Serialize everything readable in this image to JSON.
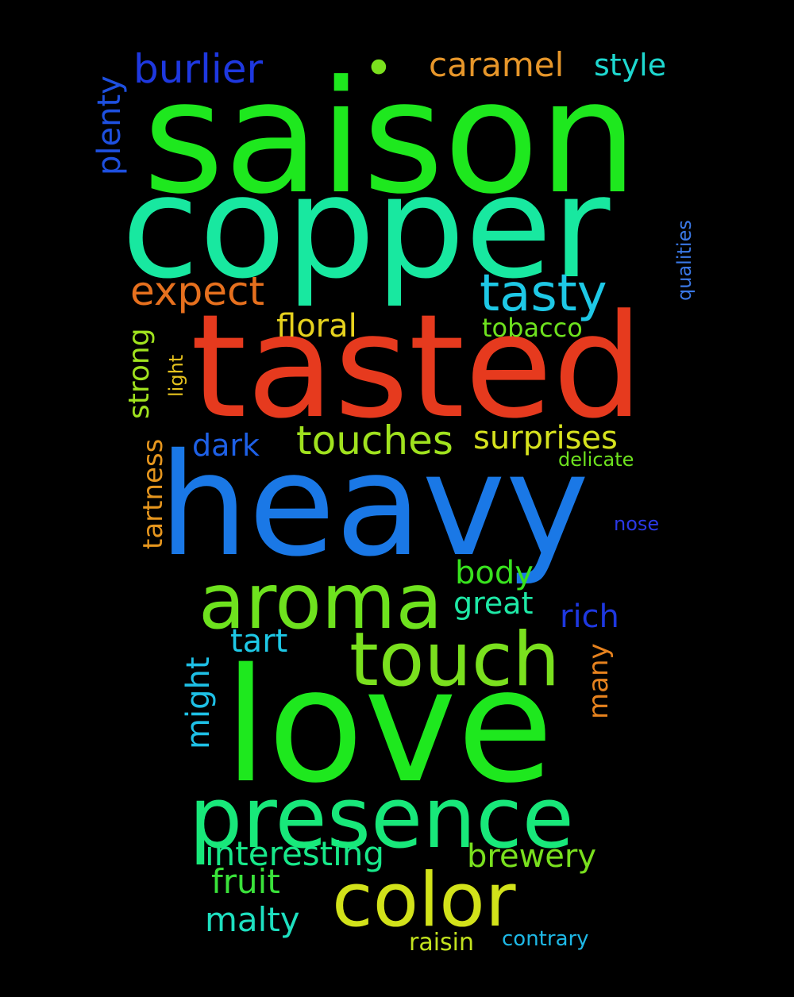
{
  "word_cloud": {
    "background": "#000000",
    "words": [
      {
        "id": "saison",
        "text": "saison",
        "color": "#1ee81e",
        "rotated": false
      },
      {
        "id": "copper",
        "text": "copper",
        "color": "#18e8a0",
        "rotated": false
      },
      {
        "id": "tasted",
        "text": "tasted",
        "color": "#e63a1e",
        "rotated": false
      },
      {
        "id": "heavy",
        "text": "heavy",
        "color": "#1a78e6",
        "rotated": false
      },
      {
        "id": "love",
        "text": "love",
        "color": "#1ee81e",
        "rotated": false
      },
      {
        "id": "aroma",
        "text": "aroma",
        "color": "#6ee21e",
        "rotated": false
      },
      {
        "id": "presence",
        "text": "presence",
        "color": "#18e87a",
        "rotated": false
      },
      {
        "id": "touch",
        "text": "touch",
        "color": "#7ae01e",
        "rotated": false
      },
      {
        "id": "color",
        "text": "color",
        "color": "#d2e21a",
        "rotated": false
      },
      {
        "id": "tasty",
        "text": "tasty",
        "color": "#1ec8e6",
        "rotated": false
      },
      {
        "id": "burlier",
        "text": "burlier",
        "color": "#1e38e0",
        "rotated": false
      },
      {
        "id": "caramel",
        "text": "caramel",
        "color": "#e6962a",
        "rotated": false
      },
      {
        "id": "style",
        "text": "style",
        "color": "#1ed8d0",
        "rotated": false
      },
      {
        "id": "plenty",
        "text": "plenty",
        "color": "#1e50e0",
        "rotated": true
      },
      {
        "id": "expect",
        "text": "expect",
        "color": "#e6701e",
        "rotated": false
      },
      {
        "id": "floral",
        "text": "floral",
        "color": "#e6d21e",
        "rotated": false
      },
      {
        "id": "tobacco",
        "text": "tobacco",
        "color": "#6ee21e",
        "rotated": false
      },
      {
        "id": "qualities",
        "text": "qualities",
        "color": "#3a78e6",
        "rotated": true
      },
      {
        "id": "strong",
        "text": "strong",
        "color": "#a0e21e",
        "rotated": true
      },
      {
        "id": "light",
        "text": "light",
        "color": "#e6c21e",
        "rotated": true
      },
      {
        "id": "dark",
        "text": "dark",
        "color": "#1e60e6",
        "rotated": false
      },
      {
        "id": "touches",
        "text": "touches",
        "color": "#a0e21e",
        "rotated": false
      },
      {
        "id": "surprises",
        "text": "surprises",
        "color": "#d6e21e",
        "rotated": false
      },
      {
        "id": "delicate",
        "text": "delicate",
        "color": "#6ee21e",
        "rotated": false
      },
      {
        "id": "tartness",
        "text": "tartness",
        "color": "#e6961e",
        "rotated": true
      },
      {
        "id": "nose",
        "text": "nose",
        "color": "#2a38e6",
        "rotated": false
      },
      {
        "id": "body",
        "text": "body",
        "color": "#38e21e",
        "rotated": false
      },
      {
        "id": "great",
        "text": "great",
        "color": "#1ee8a6",
        "rotated": false
      },
      {
        "id": "rich",
        "text": "rich",
        "color": "#1e38e0",
        "rotated": false
      },
      {
        "id": "tart",
        "text": "tart",
        "color": "#1ec8e6",
        "rotated": false
      },
      {
        "id": "might",
        "text": "might",
        "color": "#1ec0e6",
        "rotated": true
      },
      {
        "id": "many",
        "text": "many",
        "color": "#e6821e",
        "rotated": true
      },
      {
        "id": "interesting",
        "text": "interesting",
        "color": "#18e88a",
        "rotated": false
      },
      {
        "id": "brewery",
        "text": "brewery",
        "color": "#7ae01e",
        "rotated": false
      },
      {
        "id": "fruit",
        "text": "fruit",
        "color": "#3ae23a",
        "rotated": false
      },
      {
        "id": "malty",
        "text": "malty",
        "color": "#1ee0c0",
        "rotated": false
      },
      {
        "id": "raisin",
        "text": "raisin",
        "color": "#c2e21e",
        "rotated": false
      },
      {
        "id": "contrary",
        "text": "contrary",
        "color": "#1eb8e6",
        "rotated": false
      },
      {
        "id": "dot",
        "text": "•",
        "color": "#7ae01e",
        "rotated": false
      }
    ]
  }
}
